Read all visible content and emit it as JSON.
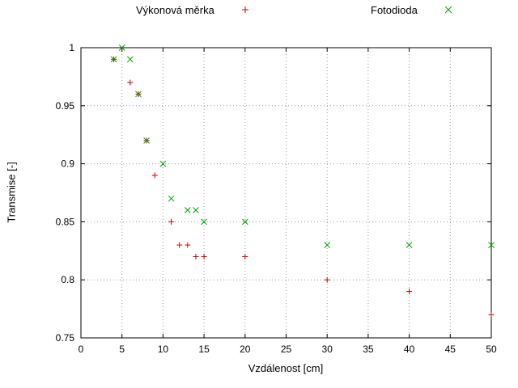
{
  "chart_data": {
    "type": "scatter",
    "title": "",
    "xlabel": "Vzdálenost [cm]",
    "ylabel": "Transmise [-]",
    "xlim": [
      0,
      50
    ],
    "ylim": [
      0.75,
      1.0
    ],
    "xticks": [
      0,
      5,
      10,
      15,
      20,
      25,
      30,
      35,
      40,
      45,
      50
    ],
    "yticks": [
      0.75,
      0.8,
      0.85,
      0.9,
      0.95,
      1
    ],
    "grid": true,
    "legend_position": "top",
    "series": [
      {
        "name": "Výkonová měrka",
        "marker": "plus",
        "color": "#cc0000",
        "points": [
          [
            4,
            0.99
          ],
          [
            6,
            0.97
          ],
          [
            7,
            0.96
          ],
          [
            8,
            0.92
          ],
          [
            9,
            0.89
          ],
          [
            11,
            0.85
          ],
          [
            12,
            0.83
          ],
          [
            13,
            0.83
          ],
          [
            14,
            0.82
          ],
          [
            15,
            0.82
          ],
          [
            20,
            0.82
          ],
          [
            30,
            0.8
          ],
          [
            40,
            0.79
          ],
          [
            50,
            0.77
          ]
        ]
      },
      {
        "name": "Fotodioda",
        "marker": "cross",
        "color": "#00a000",
        "points": [
          [
            4,
            0.99
          ],
          [
            5,
            1.0
          ],
          [
            6,
            0.99
          ],
          [
            7,
            0.96
          ],
          [
            8,
            0.92
          ],
          [
            10,
            0.9
          ],
          [
            11,
            0.87
          ],
          [
            13,
            0.86
          ],
          [
            14,
            0.86
          ],
          [
            15,
            0.85
          ],
          [
            20,
            0.85
          ],
          [
            30,
            0.83
          ],
          [
            40,
            0.83
          ],
          [
            50,
            0.83
          ]
        ]
      }
    ]
  }
}
